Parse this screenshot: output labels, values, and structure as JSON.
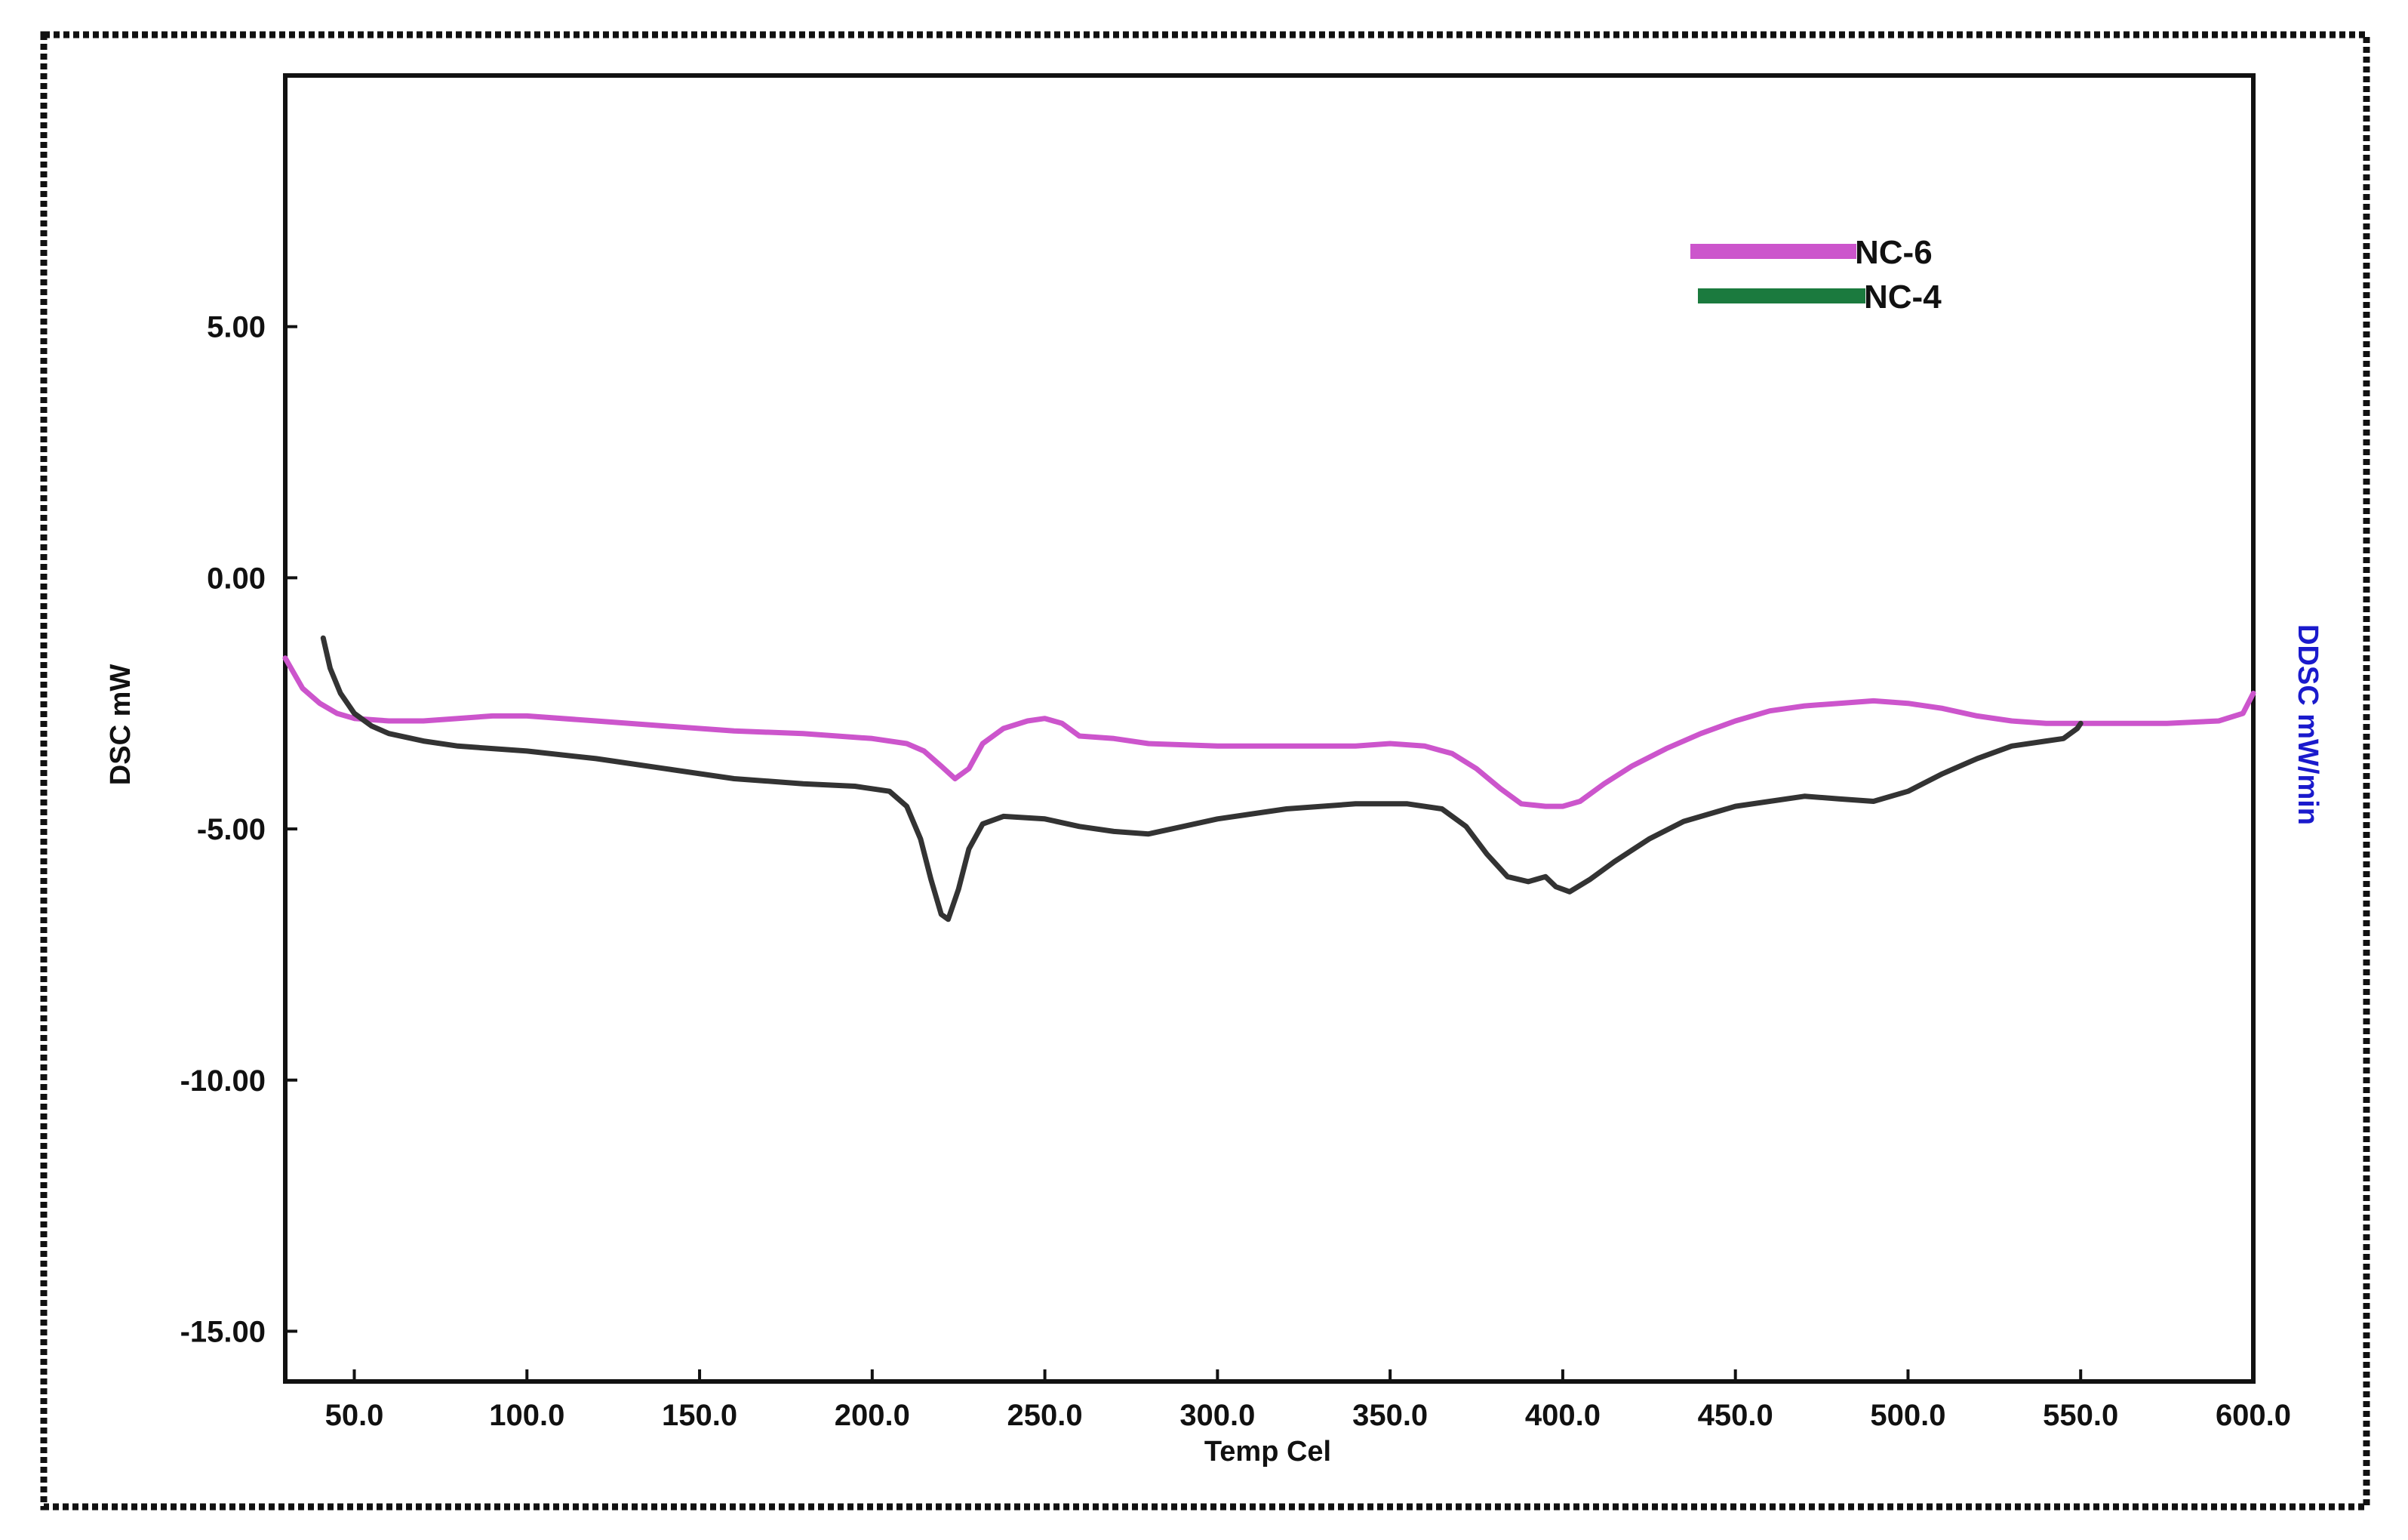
{
  "chart_data": {
    "type": "line",
    "xlabel": "Temp Cel",
    "ylabel": "DSC mW",
    "y2label": "DDSC mW/min",
    "xlim": [
      30,
      600
    ],
    "ylim": [
      -16,
      10
    ],
    "x_ticks": [
      50,
      100,
      150,
      200,
      250,
      300,
      350,
      400,
      450,
      500,
      550,
      600
    ],
    "x_tick_labels": [
      "50.0",
      "100.0",
      "150.0",
      "200.0",
      "250.0",
      "300.0",
      "350.0",
      "400.0",
      "450.0",
      "500.0",
      "550.0",
      "600.0"
    ],
    "y_ticks": [
      5,
      0,
      -5,
      -10,
      -15
    ],
    "y_tick_labels": [
      "5.00",
      "0.00",
      "-5.00",
      "-10.00",
      "-15.00"
    ],
    "grid": false,
    "legend_position": "top-right",
    "series": [
      {
        "name": "NC-6",
        "color": "#cc55cc",
        "points": [
          [
            30,
            -1.6
          ],
          [
            35,
            -2.2
          ],
          [
            40,
            -2.5
          ],
          [
            45,
            -2.7
          ],
          [
            50,
            -2.8
          ],
          [
            60,
            -2.85
          ],
          [
            70,
            -2.85
          ],
          [
            80,
            -2.8
          ],
          [
            90,
            -2.75
          ],
          [
            100,
            -2.75
          ],
          [
            120,
            -2.85
          ],
          [
            140,
            -2.95
          ],
          [
            160,
            -3.05
          ],
          [
            180,
            -3.1
          ],
          [
            200,
            -3.2
          ],
          [
            210,
            -3.3
          ],
          [
            215,
            -3.45
          ],
          [
            220,
            -3.75
          ],
          [
            224,
            -4.0
          ],
          [
            228,
            -3.8
          ],
          [
            232,
            -3.3
          ],
          [
            238,
            -3.0
          ],
          [
            245,
            -2.85
          ],
          [
            250,
            -2.8
          ],
          [
            255,
            -2.9
          ],
          [
            260,
            -3.15
          ],
          [
            270,
            -3.2
          ],
          [
            280,
            -3.3
          ],
          [
            300,
            -3.35
          ],
          [
            320,
            -3.35
          ],
          [
            340,
            -3.35
          ],
          [
            350,
            -3.3
          ],
          [
            360,
            -3.35
          ],
          [
            368,
            -3.5
          ],
          [
            375,
            -3.8
          ],
          [
            382,
            -4.2
          ],
          [
            388,
            -4.5
          ],
          [
            395,
            -4.55
          ],
          [
            400,
            -4.55
          ],
          [
            405,
            -4.45
          ],
          [
            412,
            -4.1
          ],
          [
            420,
            -3.75
          ],
          [
            430,
            -3.4
          ],
          [
            440,
            -3.1
          ],
          [
            450,
            -2.85
          ],
          [
            460,
            -2.65
          ],
          [
            470,
            -2.55
          ],
          [
            480,
            -2.5
          ],
          [
            490,
            -2.45
          ],
          [
            500,
            -2.5
          ],
          [
            510,
            -2.6
          ],
          [
            520,
            -2.75
          ],
          [
            530,
            -2.85
          ],
          [
            540,
            -2.9
          ],
          [
            550,
            -2.9
          ],
          [
            560,
            -2.9
          ],
          [
            575,
            -2.9
          ],
          [
            590,
            -2.85
          ],
          [
            597,
            -2.7
          ],
          [
            600,
            -2.3
          ]
        ]
      },
      {
        "name": "NC-4",
        "color": "#333333",
        "points": [
          [
            41,
            -1.2
          ],
          [
            43,
            -1.8
          ],
          [
            46,
            -2.3
          ],
          [
            50,
            -2.7
          ],
          [
            55,
            -2.95
          ],
          [
            60,
            -3.1
          ],
          [
            70,
            -3.25
          ],
          [
            80,
            -3.35
          ],
          [
            90,
            -3.4
          ],
          [
            100,
            -3.45
          ],
          [
            120,
            -3.6
          ],
          [
            140,
            -3.8
          ],
          [
            160,
            -4.0
          ],
          [
            180,
            -4.1
          ],
          [
            195,
            -4.15
          ],
          [
            205,
            -4.25
          ],
          [
            210,
            -4.55
          ],
          [
            214,
            -5.2
          ],
          [
            217,
            -6.0
          ],
          [
            220,
            -6.7
          ],
          [
            222,
            -6.8
          ],
          [
            225,
            -6.2
          ],
          [
            228,
            -5.4
          ],
          [
            232,
            -4.9
          ],
          [
            238,
            -4.75
          ],
          [
            250,
            -4.8
          ],
          [
            260,
            -4.95
          ],
          [
            270,
            -5.05
          ],
          [
            280,
            -5.1
          ],
          [
            290,
            -4.95
          ],
          [
            300,
            -4.8
          ],
          [
            320,
            -4.6
          ],
          [
            340,
            -4.5
          ],
          [
            355,
            -4.5
          ],
          [
            365,
            -4.6
          ],
          [
            372,
            -4.95
          ],
          [
            378,
            -5.5
          ],
          [
            384,
            -5.95
          ],
          [
            390,
            -6.05
          ],
          [
            395,
            -5.95
          ],
          [
            398,
            -6.15
          ],
          [
            402,
            -6.25
          ],
          [
            408,
            -6.0
          ],
          [
            415,
            -5.65
          ],
          [
            425,
            -5.2
          ],
          [
            435,
            -4.85
          ],
          [
            450,
            -4.55
          ],
          [
            470,
            -4.35
          ],
          [
            480,
            -4.4
          ],
          [
            490,
            -4.45
          ],
          [
            500,
            -4.25
          ],
          [
            510,
            -3.9
          ],
          [
            520,
            -3.6
          ],
          [
            530,
            -3.35
          ],
          [
            540,
            -3.25
          ],
          [
            545,
            -3.2
          ],
          [
            549,
            -3.0
          ],
          [
            550,
            -2.9
          ]
        ]
      }
    ],
    "legend_swatches": [
      "#cc55cc",
      "#1b7a3e"
    ]
  }
}
